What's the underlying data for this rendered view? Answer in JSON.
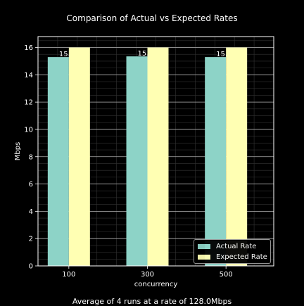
{
  "chart_data": {
    "type": "bar",
    "title": "Comparison of Actual vs Expected Rates",
    "subtitle": "Average of 4 runs at a rate of 128.0Mbps",
    "xlabel": "concurrency",
    "ylabel": "Mbps",
    "categories": [
      "100",
      "300",
      "500"
    ],
    "ylim": [
      0,
      16.8
    ],
    "yticks": [
      "0",
      "2",
      "4",
      "6",
      "8",
      "10",
      "12",
      "14",
      "16"
    ],
    "series": [
      {
        "name": "Actual Rate",
        "values": [
          15.3,
          15.35,
          15.3
        ],
        "color": "#8dd3c7"
      },
      {
        "name": "Expected Rate",
        "values": [
          16,
          16,
          16
        ],
        "color": "#ffffb3"
      }
    ],
    "data_labels": [
      "15.",
      "15.",
      "15."
    ],
    "grid": true,
    "legend_position": "lower-right",
    "background": "#000000",
    "grid_color": "#b0b0b0"
  }
}
